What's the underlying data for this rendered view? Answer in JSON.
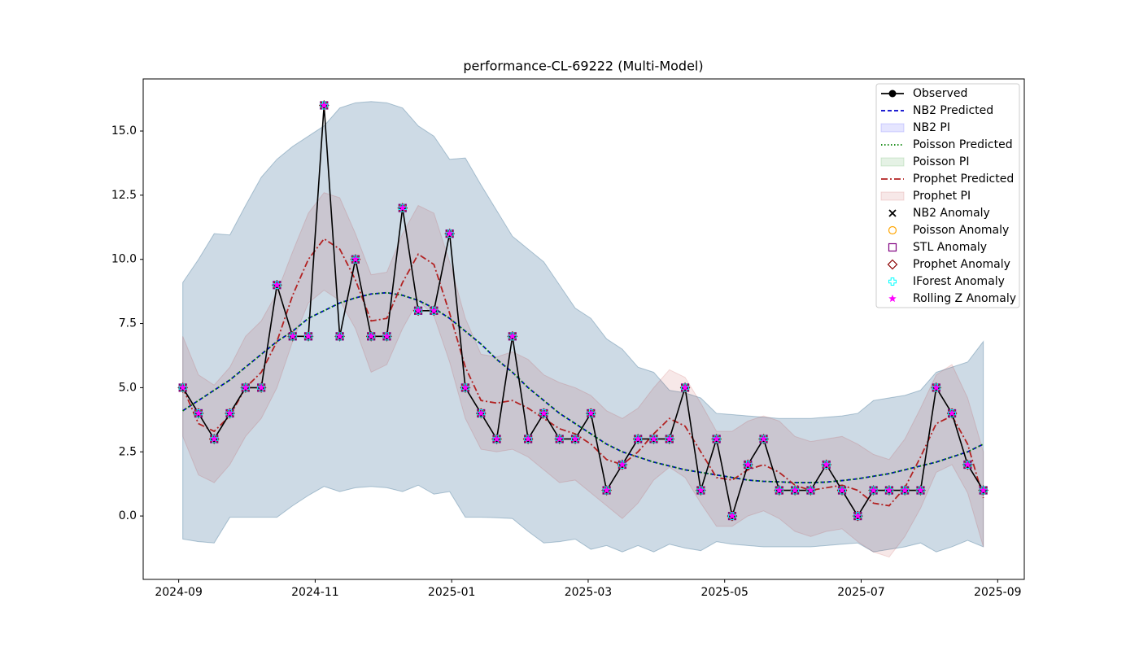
{
  "chart_data": {
    "type": "line",
    "title": "performance-CL-69222 (Multi-Model)",
    "x": [
      0.06,
      0.29,
      0.52,
      0.75,
      0.98,
      1.21,
      1.44,
      1.67,
      1.9,
      2.13,
      2.36,
      2.59,
      2.82,
      3.05,
      3.28,
      3.51,
      3.74,
      3.97,
      4.2,
      4.43,
      4.66,
      4.89,
      5.12,
      5.35,
      5.58,
      5.81,
      6.04,
      6.27,
      6.5,
      6.73,
      6.96,
      7.19,
      7.42,
      7.65,
      7.88,
      8.11,
      8.34,
      8.57,
      8.8,
      9.03,
      9.26,
      9.49,
      9.72,
      9.95,
      10.18,
      10.41,
      10.64,
      10.87,
      11.1,
      11.33,
      11.56,
      11.79
    ],
    "xlim": [
      -0.52,
      12.39
    ],
    "xticks": [
      {
        "value": 0,
        "label": "2024-09"
      },
      {
        "value": 2,
        "label": "2024-11"
      },
      {
        "value": 4,
        "label": "2025-01"
      },
      {
        "value": 6,
        "label": "2025-03"
      },
      {
        "value": 8,
        "label": "2025-05"
      },
      {
        "value": 10,
        "label": "2025-07"
      },
      {
        "value": 12,
        "label": "2025-09"
      }
    ],
    "ylim": [
      -2.47,
      17.03
    ],
    "yticks": [
      {
        "value": 0,
        "label": "0.0"
      },
      2.5,
      {
        "value": 5,
        "label": "5.0"
      },
      7.5,
      {
        "value": 10,
        "label": "10.0"
      },
      12.5,
      {
        "value": 15,
        "label": "15.0"
      }
    ],
    "grid": false,
    "legend": "upper right",
    "series": [
      {
        "name": "Observed",
        "kind": "line",
        "color": "#000000",
        "marker": "o",
        "values": [
          5,
          4,
          3,
          4,
          5,
          5,
          9,
          7,
          7,
          16,
          7,
          10,
          7,
          7,
          12,
          8,
          8,
          11,
          5,
          4,
          3,
          7,
          3,
          4,
          3,
          3,
          4,
          1,
          2,
          3,
          3,
          3,
          5,
          1,
          3,
          0,
          2,
          3,
          1,
          1,
          1,
          2,
          1,
          0,
          1,
          1,
          1,
          1,
          5,
          4,
          2,
          1
        ]
      },
      {
        "name": "NB2 Predicted",
        "kind": "line",
        "color": "#0000cc",
        "dash": "5,3",
        "values": [
          4.1,
          4.5,
          4.9,
          5.3,
          5.8,
          6.3,
          6.8,
          7.2,
          7.7,
          8.0,
          8.3,
          8.5,
          8.65,
          8.7,
          8.6,
          8.4,
          8.1,
          7.7,
          7.2,
          6.7,
          6.1,
          5.6,
          5.0,
          4.5,
          4.0,
          3.6,
          3.2,
          2.8,
          2.5,
          2.3,
          2.1,
          1.95,
          1.8,
          1.7,
          1.6,
          1.5,
          1.4,
          1.35,
          1.33,
          1.3,
          1.3,
          1.32,
          1.38,
          1.45,
          1.55,
          1.65,
          1.8,
          1.95,
          2.1,
          2.3,
          2.5,
          2.8
        ]
      },
      {
        "name": "NB2 PI",
        "kind": "band",
        "color": "#0000ff",
        "alpha": 0.1,
        "lower": [
          -0.9,
          -1.0,
          -1.05,
          -0.05,
          -0.05,
          -0.05,
          -0.05,
          0.4,
          0.8,
          1.15,
          0.95,
          1.1,
          1.15,
          1.1,
          0.95,
          1.2,
          0.85,
          0.95,
          -0.05,
          -0.05,
          -0.07,
          -0.1,
          -0.6,
          -1.05,
          -1.0,
          -0.9,
          -1.3,
          -1.15,
          -1.4,
          -1.15,
          -1.4,
          -1.1,
          -1.25,
          -1.35,
          -1.0,
          -1.1,
          -1.15,
          -1.2,
          -1.2,
          -1.2,
          -1.2,
          -1.15,
          -1.1,
          -1.05,
          -1.4,
          -1.3,
          -1.2,
          -1.05,
          -1.4,
          -1.2,
          -0.95,
          -1.2
        ],
        "upper": [
          9.1,
          10.0,
          11.0,
          10.95,
          12.1,
          13.2,
          13.9,
          14.4,
          14.8,
          15.2,
          15.9,
          16.1,
          16.15,
          16.1,
          15.9,
          15.2,
          14.8,
          13.9,
          13.95,
          12.9,
          11.9,
          10.9,
          10.4,
          9.9,
          9.0,
          8.1,
          7.7,
          6.9,
          6.5,
          5.8,
          5.6,
          4.9,
          4.8,
          4.6,
          4.0,
          3.95,
          3.9,
          3.85,
          3.8,
          3.8,
          3.8,
          3.85,
          3.9,
          4.0,
          4.5,
          4.6,
          4.7,
          4.9,
          5.6,
          5.8,
          6.0,
          6.8
        ]
      },
      {
        "name": "Poisson Predicted",
        "kind": "line",
        "color": "#008000",
        "dash": "1.5,2.5",
        "values": [
          4.1,
          4.5,
          4.9,
          5.3,
          5.8,
          6.3,
          6.8,
          7.2,
          7.7,
          8.0,
          8.3,
          8.5,
          8.65,
          8.7,
          8.6,
          8.4,
          8.1,
          7.7,
          7.2,
          6.7,
          6.1,
          5.6,
          5.0,
          4.5,
          4.0,
          3.6,
          3.2,
          2.8,
          2.5,
          2.3,
          2.1,
          1.95,
          1.8,
          1.7,
          1.6,
          1.5,
          1.4,
          1.35,
          1.33,
          1.3,
          1.3,
          1.32,
          1.38,
          1.45,
          1.55,
          1.65,
          1.8,
          1.95,
          2.1,
          2.3,
          2.5,
          2.8
        ]
      },
      {
        "name": "Poisson PI",
        "kind": "band",
        "color": "#008000",
        "alpha": 0.1,
        "lower": [
          -0.9,
          -1.0,
          -1.05,
          -0.05,
          -0.05,
          -0.05,
          -0.05,
          0.4,
          0.8,
          1.15,
          0.95,
          1.1,
          1.15,
          1.1,
          0.95,
          1.2,
          0.85,
          0.95,
          -0.05,
          -0.05,
          -0.07,
          -0.1,
          -0.6,
          -1.05,
          -1.0,
          -0.9,
          -1.3,
          -1.15,
          -1.4,
          -1.15,
          -1.4,
          -1.1,
          -1.25,
          -1.35,
          -1.0,
          -1.1,
          -1.15,
          -1.2,
          -1.2,
          -1.2,
          -1.2,
          -1.15,
          -1.1,
          -1.05,
          -1.4,
          -1.3,
          -1.2,
          -1.05,
          -1.4,
          -1.2,
          -0.95,
          -1.2
        ],
        "upper": [
          9.1,
          10.0,
          11.0,
          10.95,
          12.1,
          13.2,
          13.9,
          14.4,
          14.8,
          15.2,
          15.9,
          16.1,
          16.15,
          16.1,
          15.9,
          15.2,
          14.8,
          13.9,
          13.95,
          12.9,
          11.9,
          10.9,
          10.4,
          9.9,
          9.0,
          8.1,
          7.7,
          6.9,
          6.5,
          5.8,
          5.6,
          4.9,
          4.8,
          4.6,
          4.0,
          3.95,
          3.9,
          3.85,
          3.8,
          3.8,
          3.8,
          3.85,
          3.9,
          4.0,
          4.5,
          4.6,
          4.7,
          4.9,
          5.6,
          5.8,
          6.0,
          6.8
        ]
      },
      {
        "name": "Prophet Predicted",
        "kind": "line",
        "color": "#b22222",
        "dash": "8,3,2,3",
        "values": [
          5,
          3.6,
          3.3,
          3.9,
          5,
          5.6,
          6.8,
          8.6,
          10,
          10.8,
          10.4,
          9.2,
          7.6,
          7.7,
          9.1,
          10.2,
          9.8,
          7.9,
          5.8,
          4.5,
          4.4,
          4.5,
          4.2,
          3.8,
          3.4,
          3.2,
          2.8,
          2.2,
          2.0,
          2.5,
          3.2,
          3.8,
          3.5,
          2.5,
          1.5,
          1.4,
          1.8,
          2.0,
          1.7,
          1.2,
          1.0,
          1.1,
          1.2,
          1.0,
          0.5,
          0.4,
          1.1,
          2.3,
          3.6,
          3.9,
          2.8,
          0.7
        ]
      },
      {
        "name": "Prophet PI",
        "kind": "band",
        "color": "#b22222",
        "alpha": 0.1,
        "lower": [
          3.1,
          1.6,
          1.3,
          2.0,
          3.1,
          3.8,
          5.0,
          6.8,
          8.3,
          8.8,
          8.4,
          7.3,
          5.6,
          5.9,
          7.3,
          8.4,
          7.8,
          6.0,
          3.8,
          2.6,
          2.5,
          2.6,
          2.3,
          1.8,
          1.3,
          1.4,
          0.9,
          0.4,
          -0.1,
          0.5,
          1.4,
          1.9,
          1.5,
          0.5,
          -0.4,
          -0.4,
          0.0,
          0.2,
          -0.1,
          -0.6,
          -0.8,
          -0.6,
          -0.5,
          -1.0,
          -1.4,
          -1.6,
          -0.8,
          0.3,
          1.7,
          2.0,
          0.9,
          -1.2
        ],
        "upper": [
          7,
          5.5,
          5.1,
          5.8,
          7,
          7.6,
          8.7,
          10.3,
          11.8,
          12.6,
          12.4,
          11,
          9.4,
          9.5,
          11,
          12.1,
          11.8,
          9.9,
          7.7,
          6.3,
          6.2,
          6.4,
          6.1,
          5.5,
          5.2,
          5.0,
          4.7,
          4.1,
          3.8,
          4.2,
          5.0,
          5.7,
          5.4,
          4.4,
          3.3,
          3.3,
          3.7,
          3.9,
          3.7,
          3.1,
          2.9,
          3.0,
          3.1,
          2.8,
          2.4,
          2.2,
          3.0,
          4.2,
          5.5,
          5.9,
          4.6,
          2.5
        ]
      },
      {
        "name": "NB2 Anomaly",
        "kind": "scatter",
        "color": "#000000",
        "marker": "x",
        "values": [
          5,
          4,
          3,
          4,
          5,
          5,
          9,
          7,
          7,
          16,
          7,
          10,
          7,
          7,
          12,
          8,
          8,
          11,
          5,
          4,
          3,
          7,
          3,
          4,
          3,
          3,
          4,
          1,
          2,
          3,
          3,
          3,
          5,
          1,
          3,
          0,
          2,
          3,
          1,
          1,
          1,
          2,
          1,
          0,
          1,
          1,
          1,
          1,
          5,
          4,
          2,
          1
        ]
      },
      {
        "name": "Poisson Anomaly",
        "kind": "scatter",
        "color": "#ffa500",
        "marker": "circle",
        "values": [
          5,
          4,
          3,
          4,
          5,
          5,
          9,
          7,
          7,
          16,
          7,
          10,
          7,
          7,
          12,
          8,
          8,
          11,
          5,
          4,
          3,
          7,
          3,
          4,
          3,
          3,
          4,
          1,
          2,
          3,
          3,
          3,
          5,
          1,
          3,
          0,
          2,
          3,
          1,
          1,
          1,
          2,
          1,
          0,
          1,
          1,
          1,
          1,
          5,
          4,
          2,
          1
        ]
      },
      {
        "name": "STL Anomaly",
        "kind": "scatter",
        "color": "#800080",
        "marker": "square",
        "values": [
          5,
          4,
          3,
          4,
          5,
          5,
          9,
          7,
          7,
          16,
          7,
          10,
          7,
          7,
          12,
          8,
          8,
          11,
          5,
          4,
          3,
          7,
          3,
          4,
          3,
          3,
          4,
          1,
          2,
          3,
          3,
          3,
          5,
          1,
          3,
          0,
          2,
          3,
          1,
          1,
          1,
          2,
          1,
          0,
          1,
          1,
          1,
          1,
          5,
          4,
          2,
          1
        ]
      },
      {
        "name": "Prophet Anomaly",
        "kind": "scatter",
        "color": "#8b0000",
        "marker": "diamond",
        "values": [
          5,
          4,
          3,
          4,
          5,
          5,
          9,
          7,
          7,
          16,
          7,
          10,
          7,
          7,
          12,
          8,
          8,
          11,
          5,
          4,
          3,
          7,
          3,
          4,
          3,
          3,
          4,
          1,
          2,
          3,
          3,
          3,
          5,
          1,
          3,
          0,
          2,
          3,
          1,
          1,
          1,
          2,
          1,
          0,
          1,
          1,
          1,
          1,
          5,
          4,
          2,
          1
        ]
      },
      {
        "name": "IForest Anomaly",
        "kind": "scatter",
        "color": "#00ffff",
        "marker": "plus",
        "values": [
          5,
          4,
          3,
          4,
          5,
          5,
          9,
          7,
          7,
          16,
          7,
          10,
          7,
          7,
          12,
          8,
          8,
          11,
          5,
          4,
          3,
          7,
          3,
          4,
          3,
          3,
          4,
          1,
          2,
          3,
          3,
          3,
          5,
          1,
          3,
          0,
          2,
          3,
          1,
          1,
          1,
          2,
          1,
          0,
          1,
          1,
          1,
          1,
          5,
          4,
          2,
          1
        ]
      },
      {
        "name": "Rolling Z Anomaly",
        "kind": "scatter",
        "color": "#ff00ff",
        "marker": "star",
        "values": [
          5,
          4,
          3,
          4,
          5,
          5,
          9,
          7,
          7,
          16,
          7,
          10,
          7,
          7,
          12,
          8,
          8,
          11,
          5,
          4,
          3,
          7,
          3,
          4,
          3,
          3,
          4,
          1,
          2,
          3,
          3,
          3,
          5,
          1,
          3,
          0,
          2,
          3,
          1,
          1,
          1,
          2,
          1,
          0,
          1,
          1,
          1,
          1,
          5,
          4,
          2,
          1
        ]
      }
    ]
  }
}
